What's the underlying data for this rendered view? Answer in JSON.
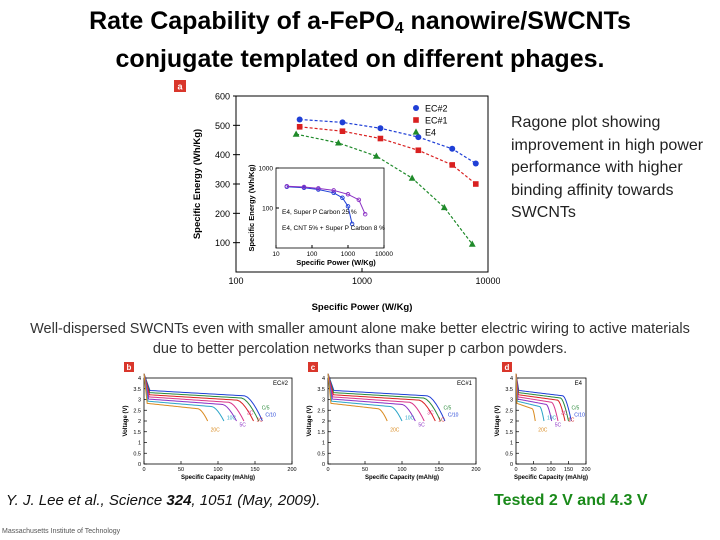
{
  "title": {
    "line1_pre": "Rate Capability of a-FePO",
    "line1_sub": "4",
    "line1_post": " nanowire/SWCNTs",
    "line2": "conjugate templated on different phages."
  },
  "caption_right": "Ragone plot showing improvement in  high power performance with higher binding affinity towards SWCNTs",
  "caption_mid": "Well-dispersed SWCNTs even with smaller amount alone make better electric wiring to active materials due to better percolation networks than super p carbon powders.",
  "citation": {
    "authors": "Y. J. Lee et al., Science ",
    "volume": "324",
    "rest": ", 1051 (May, 2009)."
  },
  "tested": "Tested 2 V and 4.3 V",
  "footer": "Massachusetts Institute of Technology",
  "chart_data": [
    {
      "panel": "a",
      "type": "scatter",
      "xlabel": "Specific Power (W/Kg)",
      "ylabel": "Specific Energy (Wh/Kg)",
      "xscale": "log",
      "xlim": [
        100,
        10000
      ],
      "xticks": [
        100,
        1000,
        10000
      ],
      "xtick_labels": [
        "100",
        "1000",
        "10000"
      ],
      "ylim": [
        0,
        600
      ],
      "yticks": [
        100,
        200,
        300,
        400,
        500,
        600
      ],
      "legend": "top-right",
      "colors": {
        "EC#2": "#1f3fd6",
        "EC#1": "#d92020",
        "E4": "#1f8a2a"
      },
      "series": [
        {
          "name": "EC#2",
          "marker": "circle",
          "x": [
            320,
            700,
            1400,
            2800,
            5200,
            8000
          ],
          "y": [
            520,
            510,
            490,
            460,
            420,
            370
          ]
        },
        {
          "name": "EC#1",
          "marker": "square",
          "x": [
            320,
            700,
            1400,
            2800,
            5200,
            8000
          ],
          "y": [
            495,
            480,
            455,
            415,
            365,
            300
          ]
        },
        {
          "name": "E4",
          "marker": "triangle",
          "x": [
            300,
            650,
            1300,
            2500,
            4500,
            7500
          ],
          "y": [
            470,
            440,
            395,
            320,
            220,
            95
          ]
        }
      ],
      "inset": {
        "type": "line",
        "xlabel": "Specific Power (W/Kg)",
        "ylabel": "Specific Energy (Wh/Kg)",
        "xscale": "log",
        "yscale": "log",
        "xlim": [
          10,
          10000
        ],
        "ylim": [
          10,
          1000
        ],
        "xticks": [
          10,
          100,
          1000,
          10000
        ],
        "yticks": [
          100,
          1000
        ],
        "series": [
          {
            "name": "E4, Super P  Carbon 25 %",
            "color": "#1f3fd6",
            "x": [
              20,
              60,
              150,
              400,
              700,
              1000,
              1300
            ],
            "y": [
              340,
              320,
              290,
              240,
              180,
              110,
              40
            ]
          },
          {
            "name": "E4, CNT 5% + Super P Carbon 8 %",
            "color": "#8a2fc4",
            "x": [
              20,
              60,
              150,
              400,
              1000,
              2000,
              3000
            ],
            "y": [
              350,
              335,
              310,
              275,
              220,
              160,
              70
            ]
          }
        ]
      }
    },
    {
      "panel": "b",
      "type": "line",
      "label": "EC#2",
      "xlabel": "Specific Capacity (mAh/g)",
      "ylabel": "Voltage (V)",
      "xlim": [
        0,
        200
      ],
      "ylim": [
        0,
        4
      ],
      "xticks": [
        0,
        50,
        100,
        150,
        200
      ],
      "yticks": [
        0,
        0.5,
        1,
        1.5,
        2,
        2.5,
        3,
        3.5,
        4
      ],
      "series": [
        {
          "name": "C/10",
          "end_capacity": 160,
          "color": "#1f3fd6"
        },
        {
          "name": "C/5",
          "end_capacity": 155,
          "color": "#2a8a3a"
        },
        {
          "name": "1C",
          "end_capacity": 148,
          "color": "#d92020"
        },
        {
          "name": "3C",
          "end_capacity": 135,
          "color": "#d9368a"
        },
        {
          "name": "5C",
          "end_capacity": 125,
          "color": "#8a2fc4"
        },
        {
          "name": "10C",
          "end_capacity": 108,
          "color": "#2aa4c8"
        },
        {
          "name": "20C",
          "end_capacity": 86,
          "color": "#d98a1f"
        }
      ]
    },
    {
      "panel": "c",
      "type": "line",
      "label": "EC#1",
      "xlabel": "Specific Capacity (mAh/g)",
      "ylabel": "Voltage (V)",
      "xlim": [
        0,
        200
      ],
      "ylim": [
        0,
        4
      ],
      "xticks": [
        0,
        50,
        100,
        150,
        200
      ],
      "yticks": [
        0,
        0.5,
        1,
        1.5,
        2,
        2.5,
        3,
        3.5,
        4
      ],
      "series": [
        {
          "name": "C/10",
          "end_capacity": 158,
          "color": "#1f3fd6"
        },
        {
          "name": "C/5",
          "end_capacity": 152,
          "color": "#2a8a3a"
        },
        {
          "name": "1C",
          "end_capacity": 145,
          "color": "#d92020"
        },
        {
          "name": "3C",
          "end_capacity": 130,
          "color": "#d9368a"
        },
        {
          "name": "5C",
          "end_capacity": 118,
          "color": "#8a2fc4"
        },
        {
          "name": "10C",
          "end_capacity": 100,
          "color": "#2aa4c8"
        },
        {
          "name": "20C",
          "end_capacity": 80,
          "color": "#d98a1f"
        }
      ]
    },
    {
      "panel": "d",
      "type": "line",
      "label": "E4",
      "xlabel": "Specific Capacity (mAh/g)",
      "ylabel": "Voltage (V)",
      "xlim": [
        0,
        200
      ],
      "ylim": [
        0,
        4
      ],
      "xticks": [
        0,
        50,
        100,
        150,
        200
      ],
      "yticks": [
        0,
        0.5,
        1,
        1.5,
        2,
        2.5,
        3,
        3.5,
        4
      ],
      "series": [
        {
          "name": "C/10",
          "end_capacity": 158,
          "color": "#1f3fd6"
        },
        {
          "name": "C/5",
          "end_capacity": 150,
          "color": "#2a8a3a"
        },
        {
          "name": "1C",
          "end_capacity": 140,
          "color": "#d92020"
        },
        {
          "name": "3C",
          "end_capacity": 120,
          "color": "#d9368a"
        },
        {
          "name": "5C",
          "end_capacity": 102,
          "color": "#8a2fc4"
        },
        {
          "name": "10C",
          "end_capacity": 80,
          "color": "#2aa4c8"
        },
        {
          "name": "20C",
          "end_capacity": 55,
          "color": "#d98a1f"
        }
      ]
    }
  ]
}
